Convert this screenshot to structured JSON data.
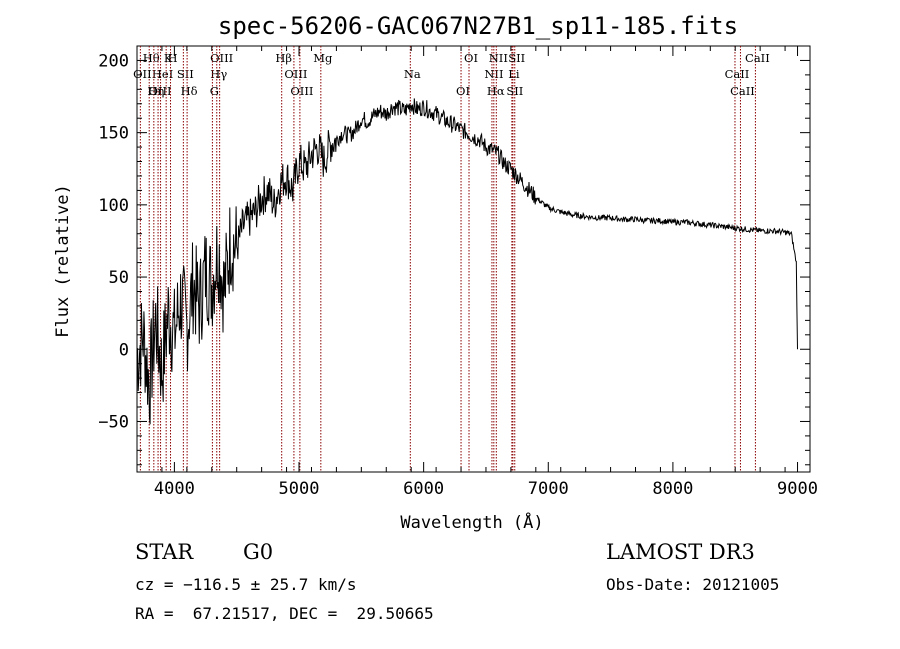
{
  "chart_data": {
    "type": "line",
    "title": "spec-56206-GAC067N27B1_sp11-185.fits",
    "xlabel": "Wavelength (Å)",
    "ylabel": "Flux (relative)",
    "xlim": [
      3700,
      9100
    ],
    "ylim": [
      -85,
      210
    ],
    "xticks": [
      4000,
      5000,
      6000,
      7000,
      8000,
      9000
    ],
    "yticks": [
      -50,
      0,
      50,
      100,
      150,
      200
    ],
    "series": [
      {
        "name": "spectrum",
        "x": [
          3700,
          3750,
          3800,
          3850,
          3900,
          3950,
          4000,
          4050,
          4100,
          4150,
          4200,
          4250,
          4300,
          4350,
          4400,
          4450,
          4500,
          4550,
          4600,
          4650,
          4700,
          4750,
          4800,
          4850,
          4900,
          4950,
          5000,
          5050,
          5100,
          5150,
          5200,
          5250,
          5300,
          5350,
          5400,
          5450,
          5500,
          5550,
          5600,
          5650,
          5700,
          5750,
          5800,
          5850,
          5900,
          5950,
          6000,
          6050,
          6100,
          6150,
          6200,
          6250,
          6300,
          6350,
          6400,
          6450,
          6500,
          6550,
          6600,
          6650,
          6700,
          6750,
          6800,
          6850,
          6900,
          7000,
          7100,
          7200,
          7300,
          7400,
          7500,
          7600,
          7700,
          7800,
          7900,
          8000,
          8100,
          8200,
          8300,
          8400,
          8500,
          8600,
          8700,
          8800,
          8900,
          8950,
          8990,
          9000
        ],
        "y": [
          -5,
          10,
          -25,
          20,
          -15,
          25,
          10,
          35,
          15,
          45,
          30,
          55,
          45,
          70,
          40,
          75,
          70,
          85,
          90,
          95,
          105,
          110,
          100,
          115,
          120,
          110,
          130,
          125,
          135,
          140,
          130,
          142,
          145,
          150,
          148,
          152,
          160,
          158,
          162,
          165,
          163,
          168,
          167,
          165,
          170,
          166,
          168,
          165,
          163,
          160,
          157,
          155,
          152,
          150,
          147,
          145,
          140,
          138,
          135,
          128,
          125,
          120,
          115,
          110,
          105,
          98,
          95,
          93,
          92,
          91,
          91,
          90,
          90,
          89,
          89,
          88,
          88,
          87,
          86,
          85,
          84,
          83,
          82,
          82,
          81,
          80,
          60,
          0
        ]
      }
    ],
    "lines": [
      {
        "name": "Hθ",
        "wl": 3798
      },
      {
        "name": "OII",
        "wl": 3727
      },
      {
        "name": "OIII",
        "wl": 3869
      },
      {
        "name": "K",
        "wl": 3934
      },
      {
        "name": "HeI",
        "wl": 3889
      },
      {
        "name": "Hη",
        "wl": 3835
      },
      {
        "name": "H",
        "wl": 3969
      },
      {
        "name": "SII",
        "wl": 4072
      },
      {
        "name": "Hδ",
        "wl": 4102
      },
      {
        "name": "OIII",
        "wl": 4363
      },
      {
        "name": "Hγ",
        "wl": 4340
      },
      {
        "name": "G",
        "wl": 4305
      },
      {
        "name": "Hβ",
        "wl": 4861
      },
      {
        "name": "OIII",
        "wl": 4959
      },
      {
        "name": "OIII",
        "wl": 5007
      },
      {
        "name": "Mg",
        "wl": 5175
      },
      {
        "name": "Na",
        "wl": 5893
      },
      {
        "name": "OI",
        "wl": 6300
      },
      {
        "name": "OI",
        "wl": 6364
      },
      {
        "name": "NII",
        "wl": 6548
      },
      {
        "name": "Hα",
        "wl": 6563
      },
      {
        "name": "NII",
        "wl": 6583
      },
      {
        "name": "Li",
        "wl": 6708
      },
      {
        "name": "SII",
        "wl": 6716
      },
      {
        "name": "SII",
        "wl": 6731
      },
      {
        "name": "CaII",
        "wl": 8498
      },
      {
        "name": "CaII",
        "wl": 8542
      },
      {
        "name": "CaII",
        "wl": 8662
      }
    ]
  },
  "info": {
    "class": "STAR",
    "subclass": "G0",
    "survey": "LAMOST DR3",
    "cz": "cz = −116.5 ± 25.7 km/s",
    "obsdate": "Obs-Date: 20121005",
    "radec": "RA =  67.21517, DEC =  29.50665"
  },
  "colors": {
    "line": "#000000",
    "marker": "#8b0000"
  }
}
